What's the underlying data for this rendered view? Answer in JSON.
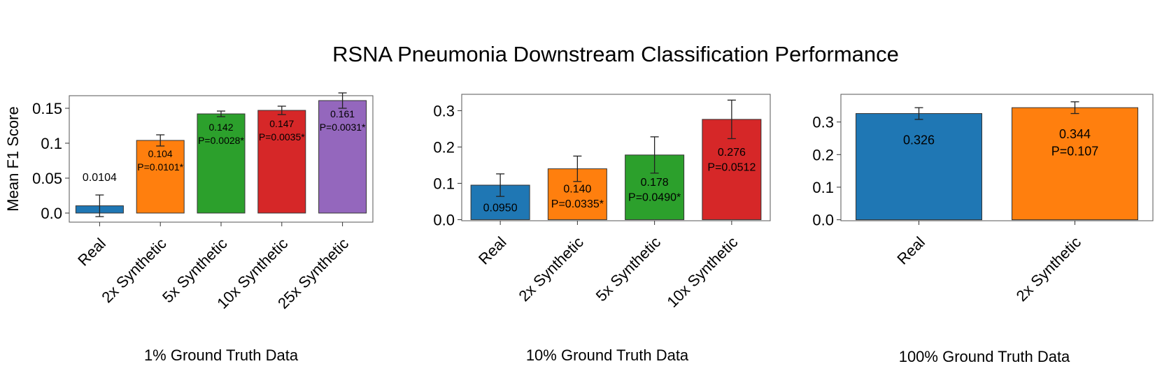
{
  "figure_title": "RSNA Pneumonia Downstream Classification Performance",
  "chart_data": [
    {
      "type": "bar",
      "subtitle": "1% Ground Truth Data",
      "ylabel": "Mean F1 Score",
      "ylim": [
        -0.013,
        0.168
      ],
      "yticks": [
        0.0,
        0.05,
        0.1,
        0.15
      ],
      "ytick_labels": [
        "0.0",
        "0.05",
        "0.1",
        "0.15"
      ],
      "categories": [
        "Real",
        "2x Synthetic",
        "5x Synthetic",
        "10x Synthetic",
        "25x Synthetic"
      ],
      "values": [
        0.0104,
        0.104,
        0.142,
        0.147,
        0.161
      ],
      "errors": [
        0.0155,
        0.008,
        0.004,
        0.006,
        0.011
      ],
      "colors": [
        "#1f77b4",
        "#ff7f0e",
        "#2ca02c",
        "#d62728",
        "#9467bd"
      ],
      "labels": [
        [
          "0.0104"
        ],
        [
          "0.104",
          "P=0.0101*"
        ],
        [
          "0.142",
          "P=0.0028*"
        ],
        [
          "0.147",
          "P=0.0035*"
        ],
        [
          "0.161",
          "P=0.0031*"
        ]
      ],
      "label_outside": [
        true,
        false,
        false,
        false,
        false
      ]
    },
    {
      "type": "bar",
      "subtitle": "10% Ground Truth Data",
      "ylabel": "",
      "ylim": [
        -0.003,
        0.345
      ],
      "yticks": [
        0.0,
        0.1,
        0.2,
        0.3
      ],
      "ytick_labels": [
        "0.0",
        "0.1",
        "0.2",
        "0.3"
      ],
      "categories": [
        "Real",
        "2x Synthetic",
        "5x Synthetic",
        "10x Synthetic"
      ],
      "values": [
        0.095,
        0.14,
        0.178,
        0.276
      ],
      "errors": [
        0.031,
        0.035,
        0.05,
        0.053
      ],
      "colors": [
        "#1f77b4",
        "#ff7f0e",
        "#2ca02c",
        "#d62728"
      ],
      "labels": [
        [
          "0.0950"
        ],
        [
          "0.140",
          "P=0.0335*"
        ],
        [
          "0.178",
          "P=0.0490*"
        ],
        [
          "0.276",
          "P=0.0512"
        ]
      ],
      "label_outside": [
        false,
        false,
        false,
        false
      ]
    },
    {
      "type": "bar",
      "subtitle": "100% Ground Truth Data",
      "ylabel": "",
      "ylim": [
        -0.003,
        0.385
      ],
      "yticks": [
        0.0,
        0.1,
        0.2,
        0.3
      ],
      "ytick_labels": [
        "0.0",
        "0.1",
        "0.2",
        "0.3"
      ],
      "categories": [
        "Real",
        "2x Synthetic"
      ],
      "values": [
        0.326,
        0.344
      ],
      "errors": [
        0.018,
        0.018
      ],
      "colors": [
        "#1f77b4",
        "#ff7f0e"
      ],
      "labels": [
        [
          "0.326"
        ],
        [
          "0.344",
          "P=0.107"
        ]
      ],
      "label_outside": [
        false,
        false
      ]
    }
  ]
}
